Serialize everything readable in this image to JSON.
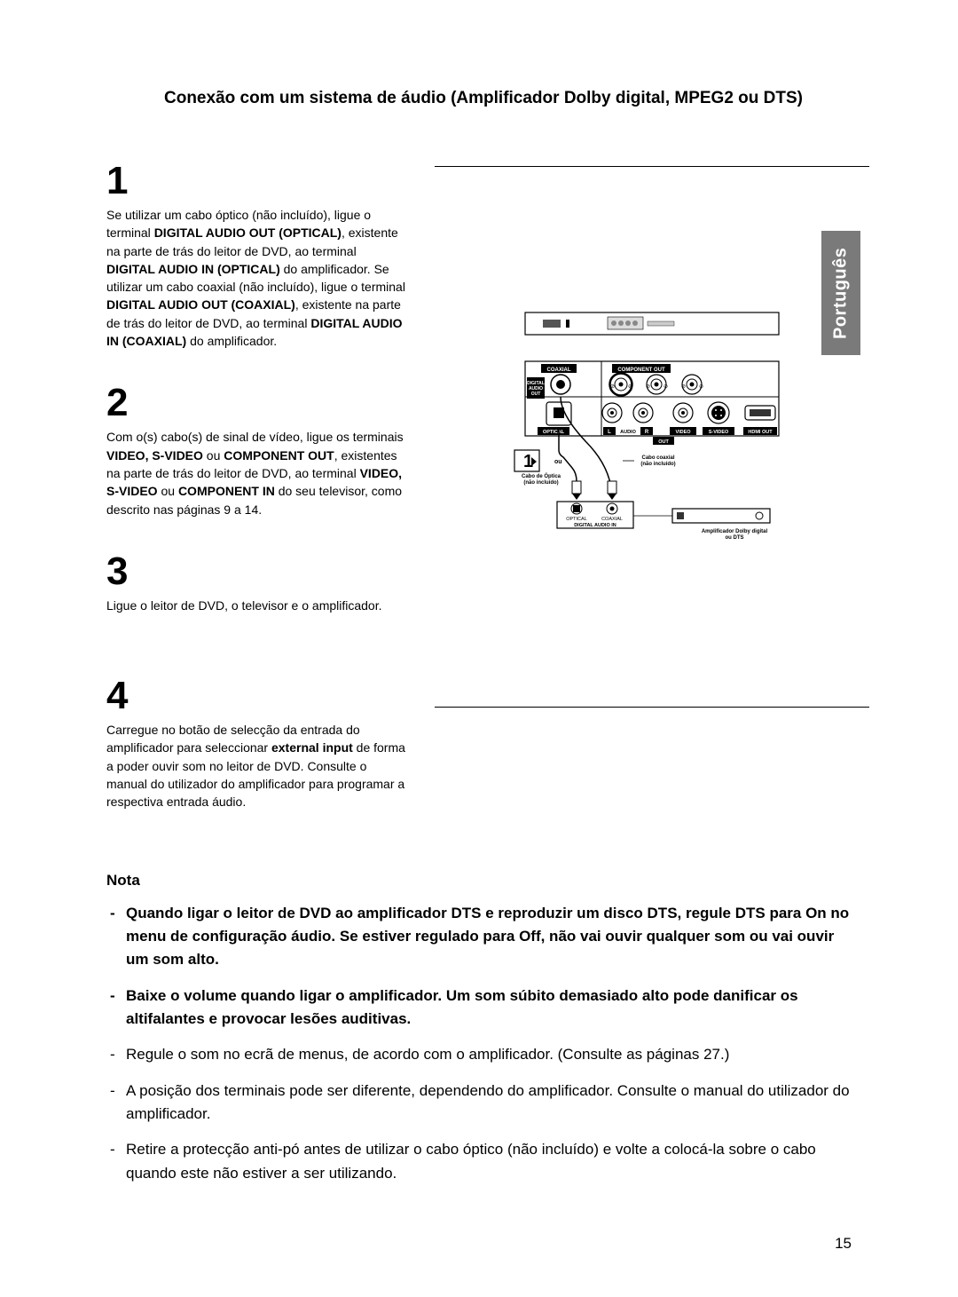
{
  "title": "Conexão com um sistema de áudio (Amplificador Dolby digital, MPEG2 ou DTS)",
  "language_tab": "Português",
  "page_number": "15",
  "steps": [
    {
      "num": "1",
      "body": "Se utilizar um cabo óptico (não incluído), ligue o terminal <b>DIGITAL AUDIO OUT (OPTICAL)</b>, existente na parte de trás do leitor de DVD, ao terminal <b>DIGITAL AUDIO IN (OPTICAL)</b> do amplificador. Se utilizar um cabo coaxial (não incluído), ligue o terminal <b>DIGITAL AUDIO OUT (COAXIAL)</b>, existente na parte de trás do leitor de DVD, ao terminal <b>DIGITAL AUDIO IN (COAXIAL)</b> do amplificador."
    },
    {
      "num": "2",
      "body": "Com o(s) cabo(s) de sinal de vídeo, ligue os terminais <b>VIDEO, S-VIDEO</b> ou <b>COMPONENT OUT</b>, existentes na parte de trás do leitor de DVD, ao terminal <b>VIDEO, S-VIDEO</b> ou <b>COMPONENT IN</b> do seu televisor, como descrito nas páginas 9 a 14."
    },
    {
      "num": "3",
      "body": "Ligue o leitor de DVD, o televisor e o amplificador."
    },
    {
      "num": "4",
      "body": "Carregue no botão de selecção da entrada do amplificador para seleccionar <b>external input</b> de forma a poder ouvir som no leitor de DVD. Consulte o manual do utilizador do amplificador para programar a respectiva entrada áudio."
    }
  ],
  "notes": {
    "heading": "Nota",
    "items": [
      {
        "bold": true,
        "text": "Quando ligar o leitor de DVD ao amplificador DTS e reproduzir um disco DTS, regule DTS para On no menu de configuração áudio. Se estiver regulado para Off, não vai ouvir qualquer som ou vai ouvir um som alto."
      },
      {
        "bold": true,
        "text": "Baixe o volume quando ligar o amplificador. Um som súbito demasiado alto pode danificar os altifalantes e provocar lesões auditivas."
      },
      {
        "bold": false,
        "text": "Regule o som no ecrã de menus, de acordo com o amplificador. (Consulte as páginas 27.)"
      },
      {
        "bold": false,
        "text": "A posição dos terminais pode ser diferente, dependendo do amplificador. Consulte o manual do utilizador do amplificador."
      },
      {
        "bold": false,
        "text": "Retire a protecção anti-pó antes de utilizar o cabo óptico (não incluído) e volte a colocá-la sobre o cabo quando este não estiver a ser utilizando."
      }
    ]
  },
  "diagram": {
    "labels": {
      "dvd_top": {
        "coaxial": "COAXIAL",
        "component_out": "COMPONENT OUT"
      },
      "dvd_left": {
        "digital_audio_out": "DIGITAL AUDIO OUT"
      },
      "dvd_bottom": {
        "optical": "OPTICAL",
        "audio": "AUDIO",
        "video": "VIDEO",
        "svideo": "S-VIDEO",
        "hdmi": "HDMI OUT",
        "out": "OUT"
      },
      "step_marker": "1",
      "ou": "ou",
      "cable_optical_1": "Cabo de Óptica",
      "cable_optical_2": "(não incluído)",
      "cable_coax_1": "Cabo coaxial",
      "cable_coax_2": "(não incluído)",
      "amp_optical": "OPTICAL",
      "amp_coaxial": "COAXIAL",
      "amp_digital_in": "DIGITAL AUDIO IN",
      "amp_label_1": "Amplificador Dolby digital",
      "amp_label_2": "ou DTS"
    },
    "colors": {
      "stroke": "#000000",
      "fill_black": "#000000",
      "fill_white": "#ffffff",
      "text_white": "#ffffff"
    }
  }
}
